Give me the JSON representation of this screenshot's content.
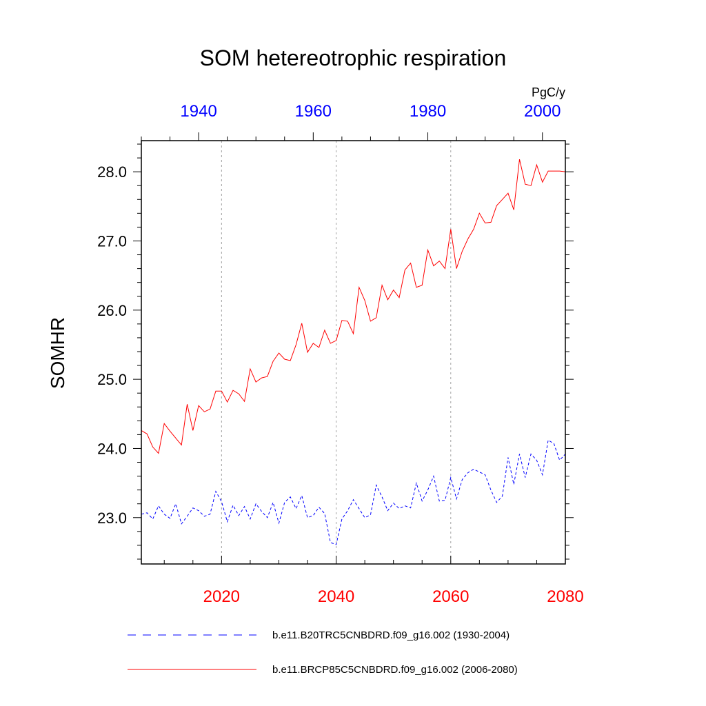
{
  "chart_data": {
    "type": "line",
    "title": "SOM hetereotrophic respiration",
    "units": "PgC/y",
    "ylabel": "SOMHR",
    "ylim": [
      22.33,
      28.45
    ],
    "yticks": [
      "23.0",
      "24.0",
      "25.0",
      "26.0",
      "27.0",
      "28.0"
    ],
    "xlim_bottom": [
      2006,
      2080
    ],
    "xticks_bottom": [
      "2020",
      "2040",
      "2060",
      "2080"
    ],
    "xlim_top": [
      1930,
      2004
    ],
    "xticks_top": [
      "1940",
      "1960",
      "1980",
      "2000"
    ],
    "grid": "vertical dotted lines at bottom-axis ticks",
    "bottom_axis_color": "#ff0000",
    "top_axis_color": "#0000ff",
    "series": [
      {
        "name": "b.e11.B20TRC5CNBDRD.f09_g16.002 (1930-2004)",
        "color": "#0000ff",
        "style": "dashed",
        "axis": "top",
        "x": [
          1930,
          1931,
          1932,
          1933,
          1934,
          1935,
          1936,
          1937,
          1938,
          1939,
          1940,
          1941,
          1942,
          1943,
          1944,
          1945,
          1946,
          1947,
          1948,
          1949,
          1950,
          1951,
          1952,
          1953,
          1954,
          1955,
          1956,
          1957,
          1958,
          1959,
          1960,
          1961,
          1962,
          1963,
          1964,
          1965,
          1966,
          1967,
          1968,
          1969,
          1970,
          1971,
          1972,
          1973,
          1974,
          1975,
          1976,
          1977,
          1978,
          1979,
          1980,
          1981,
          1982,
          1983,
          1984,
          1985,
          1986,
          1987,
          1988,
          1989,
          1990,
          1991,
          1992,
          1993,
          1994,
          1995,
          1996,
          1997,
          1998,
          1999,
          2000,
          2001,
          2002,
          2003,
          2004
        ],
        "values": [
          23.05,
          23.07,
          22.98,
          23.17,
          23.05,
          22.99,
          23.2,
          22.91,
          23.02,
          23.14,
          23.1,
          23.02,
          23.05,
          23.38,
          23.23,
          22.94,
          23.18,
          23.03,
          23.16,
          22.98,
          23.2,
          23.09,
          23.0,
          23.22,
          22.92,
          23.22,
          23.3,
          23.13,
          23.32,
          23.0,
          23.03,
          23.15,
          23.06,
          22.64,
          22.61,
          22.98,
          23.1,
          23.26,
          23.13,
          23.0,
          23.04,
          23.47,
          23.3,
          23.1,
          23.21,
          23.13,
          23.17,
          23.14,
          23.5,
          23.24,
          23.4,
          23.6,
          23.24,
          23.25,
          23.58,
          23.27,
          23.55,
          23.65,
          23.7,
          23.66,
          23.62,
          23.4,
          23.22,
          23.31,
          23.87,
          23.48,
          23.92,
          23.58,
          23.92,
          23.83,
          23.62,
          24.12,
          24.07,
          23.83,
          23.92
        ]
      },
      {
        "name": "b.e11.BRCP85C5CNBDRD.f09_g16.002 (2006-2080)",
        "color": "#ff0000",
        "style": "solid",
        "axis": "bottom",
        "x": [
          2006,
          2007,
          2008,
          2009,
          2010,
          2011,
          2012,
          2013,
          2014,
          2015,
          2016,
          2017,
          2018,
          2019,
          2020,
          2021,
          2022,
          2023,
          2024,
          2025,
          2026,
          2027,
          2028,
          2029,
          2030,
          2031,
          2032,
          2033,
          2034,
          2035,
          2036,
          2037,
          2038,
          2039,
          2040,
          2041,
          2042,
          2043,
          2044,
          2045,
          2046,
          2047,
          2048,
          2049,
          2050,
          2051,
          2052,
          2053,
          2054,
          2055,
          2056,
          2057,
          2058,
          2059,
          2060,
          2061,
          2062,
          2063,
          2064,
          2065,
          2066,
          2067,
          2068,
          2069,
          2070,
          2071,
          2072,
          2073,
          2074,
          2075,
          2076,
          2077,
          2078,
          2079,
          2080
        ],
        "values": [
          24.26,
          24.21,
          24.02,
          23.93,
          24.36,
          24.25,
          24.15,
          24.05,
          24.64,
          24.26,
          24.62,
          24.53,
          24.57,
          24.83,
          24.83,
          24.67,
          24.84,
          24.79,
          24.68,
          25.15,
          24.96,
          25.02,
          25.04,
          25.26,
          25.38,
          25.29,
          25.27,
          25.5,
          25.81,
          25.39,
          25.52,
          25.46,
          25.71,
          25.52,
          25.56,
          25.85,
          25.84,
          25.66,
          26.33,
          26.14,
          25.84,
          25.89,
          26.36,
          26.15,
          26.29,
          26.18,
          26.58,
          26.68,
          26.33,
          26.36,
          26.87,
          26.64,
          26.71,
          26.6,
          27.17,
          26.6,
          26.85,
          27.03,
          27.17,
          27.4,
          27.26,
          27.27,
          27.51,
          27.6,
          27.69,
          27.45,
          28.18,
          27.82,
          27.8,
          28.1,
          27.85,
          28.01,
          28.01,
          28.01,
          28.0
        ]
      }
    ]
  }
}
